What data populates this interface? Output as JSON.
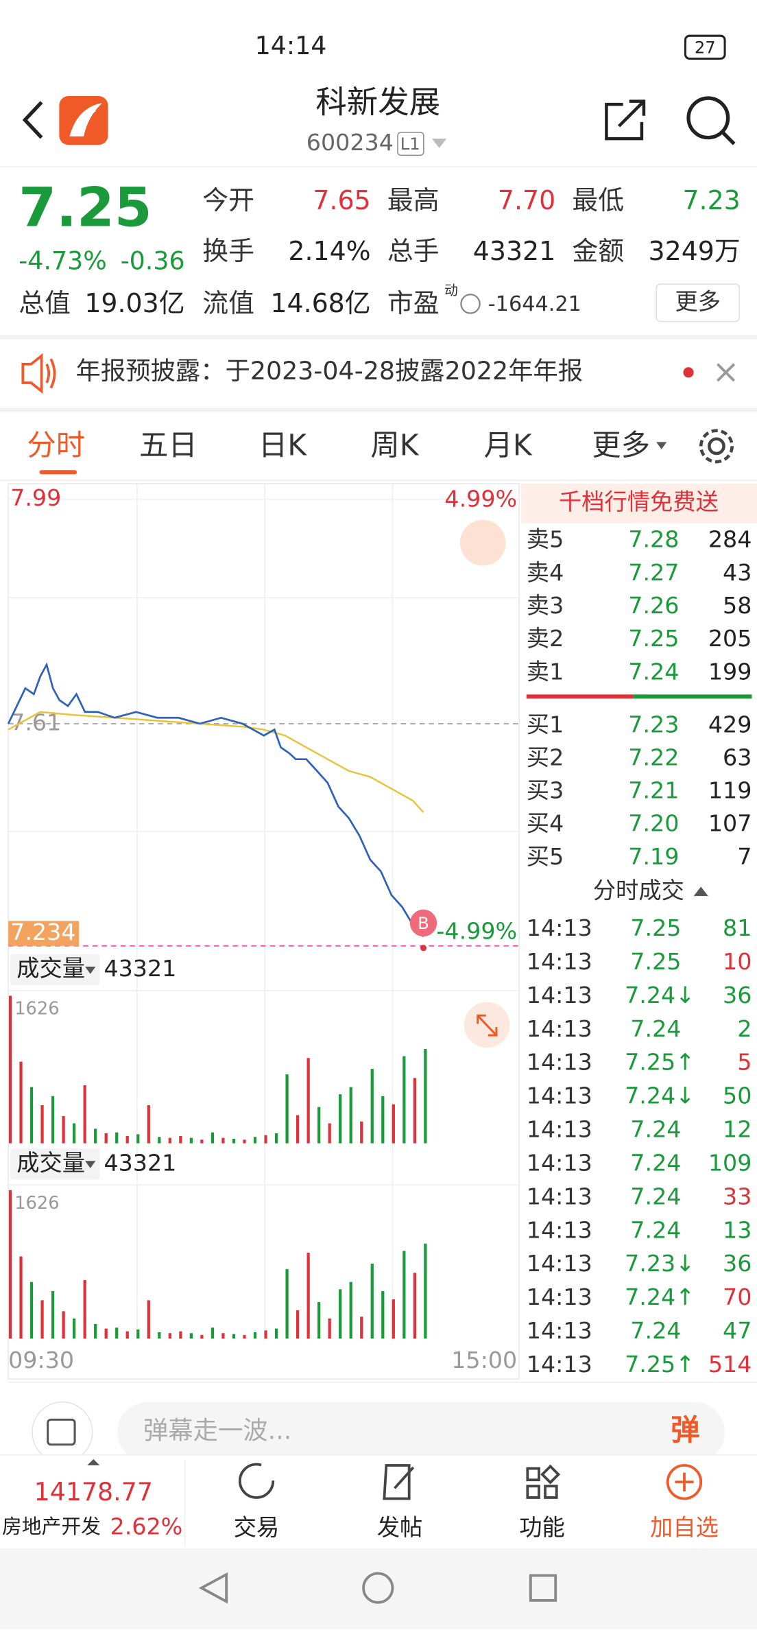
{
  "status_bar": {
    "time": "14:14",
    "battery": "27"
  },
  "header": {
    "title": "科新发展",
    "code": "600234",
    "level": "L1"
  },
  "quote": {
    "price": "7.25",
    "change_pct": "-4.73%",
    "change": "-0.36",
    "fields": [
      {
        "label": "今开",
        "value": "7.65"
      },
      {
        "label": "最高",
        "value": "7.70"
      },
      {
        "label": "最低",
        "value": "7.23"
      },
      {
        "label": "换手",
        "value": "2.14%"
      },
      {
        "label": "总手",
        "value": "43321"
      },
      {
        "label": "金额",
        "value": "3249万"
      },
      {
        "label": "总值",
        "value": "19.03亿"
      },
      {
        "label": "流值",
        "value": "14.68亿"
      }
    ],
    "pe_label": "市盈",
    "pe_sup": "动",
    "pe_value": "-1644.21",
    "more": "更多"
  },
  "notice": "年报预披露：于2023-04-28披露2022年年报",
  "tabs": [
    "分时",
    "五日",
    "日K",
    "周K",
    "月K",
    "更多"
  ],
  "chart": {
    "high_pct": "4.99%",
    "low_pct": "-4.99%",
    "marker": "B",
    "volume_label": "成交量",
    "volume_total": "43321",
    "time_start": "09:30",
    "time_end": "15:00",
    "chart_data": {
      "type": "line",
      "xlim": [
        0,
        240
      ],
      "ylim": [
        7.234,
        7.99
      ],
      "yticks": [
        7.99,
        7.61,
        7.234
      ],
      "price": {
        "color": "#2f62b8",
        "x": [
          0,
          4,
          8,
          12,
          15,
          18,
          21,
          24,
          28,
          32,
          36,
          42,
          50,
          60,
          70,
          80,
          90,
          100,
          110,
          115,
          120,
          125,
          128,
          132,
          135,
          140,
          145,
          150,
          155,
          160,
          165,
          170,
          175,
          180,
          185,
          190,
          195
        ],
        "values": [
          7.61,
          7.64,
          7.67,
          7.66,
          7.69,
          7.71,
          7.67,
          7.65,
          7.64,
          7.66,
          7.63,
          7.63,
          7.62,
          7.63,
          7.62,
          7.62,
          7.61,
          7.62,
          7.61,
          7.6,
          7.59,
          7.6,
          7.57,
          7.56,
          7.55,
          7.55,
          7.53,
          7.51,
          7.47,
          7.45,
          7.42,
          7.38,
          7.36,
          7.32,
          7.3,
          7.27,
          7.25
        ]
      },
      "average": {
        "color": "#e8c33a",
        "x": [
          0,
          15,
          30,
          50,
          70,
          90,
          110,
          120,
          130,
          140,
          150,
          160,
          170,
          180,
          190,
          195
        ],
        "values": [
          7.6,
          7.63,
          7.625,
          7.62,
          7.615,
          7.61,
          7.605,
          7.6,
          7.59,
          7.57,
          7.55,
          7.53,
          7.52,
          7.5,
          7.48,
          7.46
        ]
      },
      "volume": {
        "ylim": [
          0,
          1626
        ],
        "yticks": [
          1626
        ],
        "x": [
          0,
          5,
          10,
          15,
          20,
          25,
          30,
          35,
          40,
          45,
          50,
          55,
          60,
          65,
          70,
          75,
          80,
          85,
          90,
          95,
          100,
          105,
          110,
          115,
          120,
          125,
          130,
          135,
          140,
          145,
          150,
          155,
          160,
          165,
          170,
          175,
          180,
          185,
          190,
          195
        ],
        "values": [
          1626,
          900,
          620,
          420,
          520,
          300,
          220,
          640,
          160,
          110,
          120,
          80,
          100,
          420,
          70,
          60,
          80,
          60,
          40,
          120,
          60,
          50,
          40,
          70,
          90,
          110,
          760,
          310,
          940,
          400,
          220,
          540,
          620,
          240,
          820,
          520,
          430,
          960,
          720,
          1040
        ],
        "colors": [
          "#e0313a",
          "#e0313a",
          "#1a9a3a",
          "#e0313a",
          "#1a9a3a",
          "#e0313a",
          "#1a9a3a",
          "#e0313a",
          "#1a9a3a",
          "#e0313a",
          "#1a9a3a",
          "#e0313a",
          "#1a9a3a",
          "#e0313a",
          "#1a9a3a",
          "#e0313a",
          "#e0313a",
          "#1a9a3a",
          "#e0313a",
          "#1a9a3a",
          "#e0313a",
          "#1a9a3a",
          "#e0313a",
          "#1a9a3a",
          "#e0313a",
          "#1a9a3a",
          "#1a9a3a",
          "#e0313a",
          "#e0313a",
          "#1a9a3a",
          "#e0313a",
          "#1a9a3a",
          "#1a9a3a",
          "#e0313a",
          "#1a9a3a",
          "#1a9a3a",
          "#e0313a",
          "#1a9a3a",
          "#e0313a",
          "#1a9a3a"
        ]
      }
    }
  },
  "order_book": {
    "promo": "千档行情免费送",
    "asks": [
      [
        "卖5",
        "7.28",
        "284"
      ],
      [
        "卖4",
        "7.27",
        "43"
      ],
      [
        "卖3",
        "7.26",
        "58"
      ],
      [
        "卖2",
        "7.25",
        "205"
      ],
      [
        "卖1",
        "7.24",
        "199"
      ]
    ],
    "bids": [
      [
        "买1",
        "7.23",
        "429"
      ],
      [
        "买2",
        "7.22",
        "63"
      ],
      [
        "买3",
        "7.21",
        "119"
      ],
      [
        "买4",
        "7.20",
        "107"
      ],
      [
        "买5",
        "7.19",
        "7"
      ]
    ]
  },
  "trades": {
    "title": "分时成交",
    "rows": [
      [
        "14:13",
        "7.25",
        "81"
      ],
      [
        "14:13",
        "7.25",
        "10"
      ],
      [
        "14:13",
        "7.24↓",
        "36"
      ],
      [
        "14:13",
        "7.24",
        "2"
      ],
      [
        "14:13",
        "7.25↑",
        "5"
      ],
      [
        "14:13",
        "7.24↓",
        "50"
      ],
      [
        "14:13",
        "7.24",
        "12"
      ],
      [
        "14:13",
        "7.24",
        "109"
      ],
      [
        "14:13",
        "7.24",
        "33"
      ],
      [
        "14:13",
        "7.24",
        "13"
      ],
      [
        "14:13",
        "7.23↓",
        "36"
      ],
      [
        "14:13",
        "7.24↑",
        "70"
      ],
      [
        "14:13",
        "7.24",
        "47"
      ],
      [
        "14:13",
        "7.25↑",
        "514"
      ]
    ],
    "volume_colors": [
      "#1a9a3a",
      "#e0313a",
      "#1a9a3a",
      "#1a9a3a",
      "#e0313a",
      "#1a9a3a",
      "#1a9a3a",
      "#1a9a3a",
      "#e0313a",
      "#1a9a3a",
      "#1a9a3a",
      "#e0313a",
      "#1a9a3a",
      "#e0313a"
    ]
  },
  "bottom": {
    "placeholder": "弹幕走一波...",
    "danmu": "弹",
    "index_value": "14178.77",
    "sector": "房地产开发",
    "sector_pct": "2.62%",
    "nav": [
      "交易",
      "发帖",
      "功能",
      "加自选"
    ]
  }
}
